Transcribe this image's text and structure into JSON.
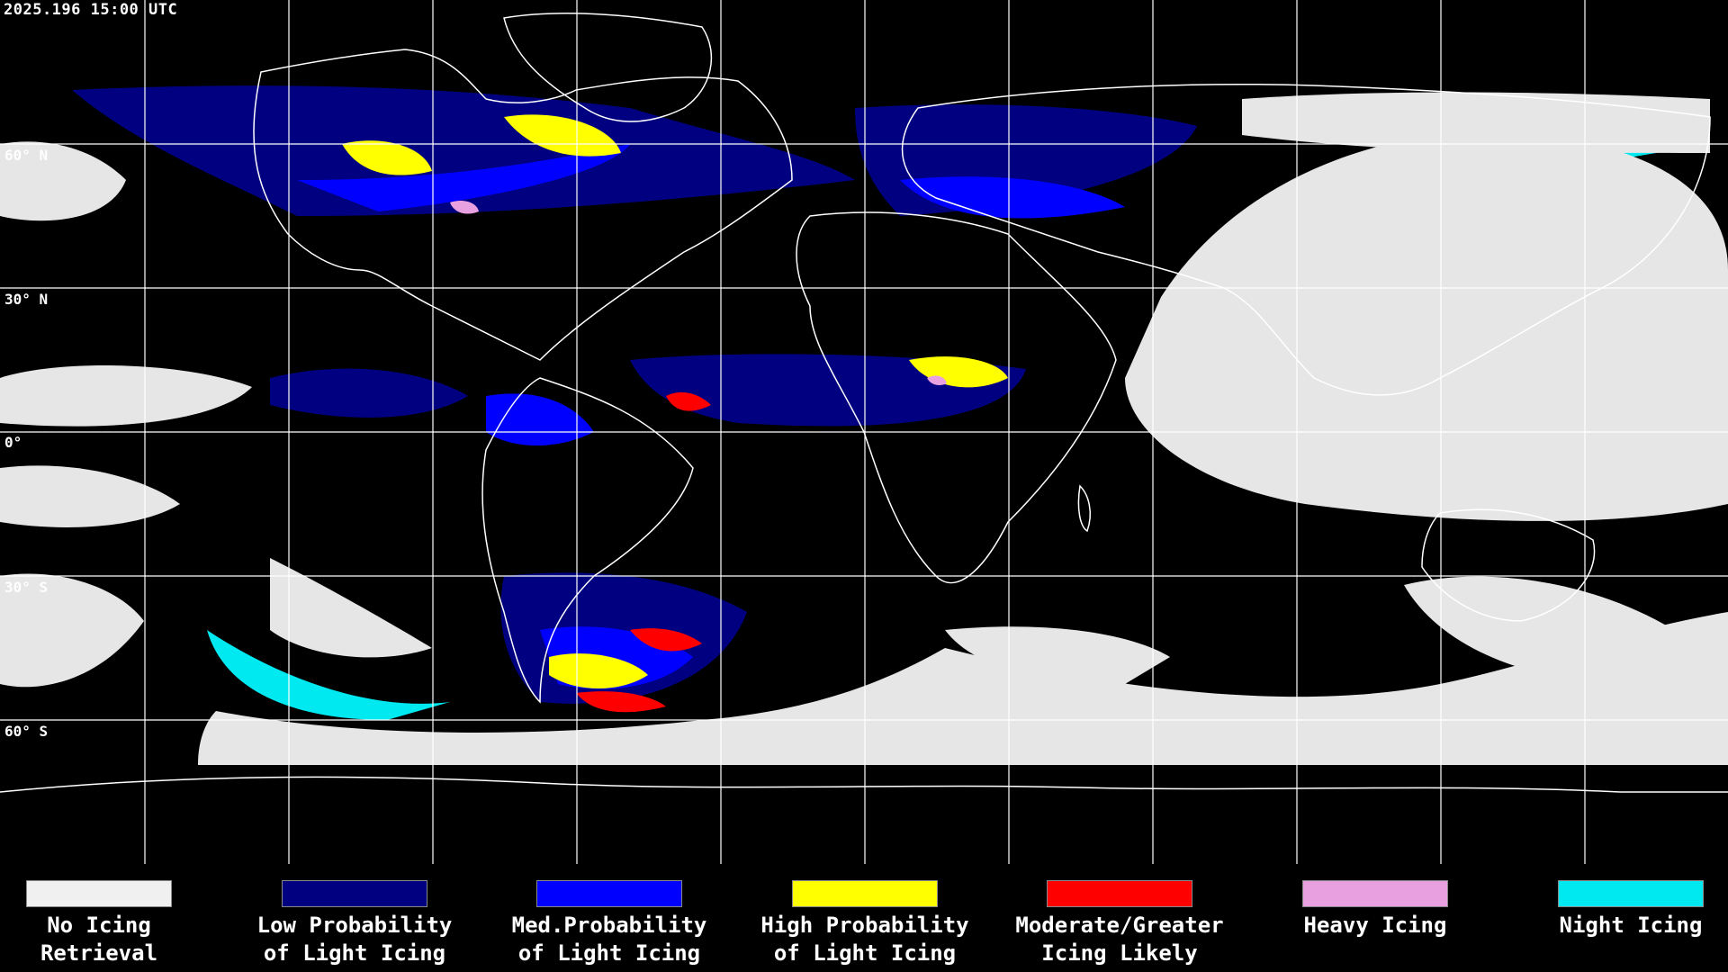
{
  "header": {
    "timestamp": "2025.196 15:00 UTC"
  },
  "map": {
    "projection": "equirectangular",
    "grid_color": "#ffffff",
    "lat_labels": [
      "60° N",
      "30° N",
      "0°",
      "30° S",
      "60° S"
    ]
  },
  "legend": {
    "items": [
      {
        "line1": "No Icing",
        "line2": "Retrieval",
        "color": "#f0f0f0"
      },
      {
        "line1": "Low Probability",
        "line2": "of Light Icing",
        "color": "#000080"
      },
      {
        "line1": "Med.Probability",
        "line2": "of Light Icing",
        "color": "#0000ff"
      },
      {
        "line1": "High Probability",
        "line2": "of Light Icing",
        "color": "#ffff00"
      },
      {
        "line1": "Moderate/Greater",
        "line2": "Icing Likely",
        "color": "#ff0000"
      },
      {
        "line1": "Heavy Icing",
        "line2": "",
        "color": "#e8a0e0"
      },
      {
        "line1": "Night Icing",
        "line2": "",
        "color": "#00e8f0"
      }
    ]
  }
}
